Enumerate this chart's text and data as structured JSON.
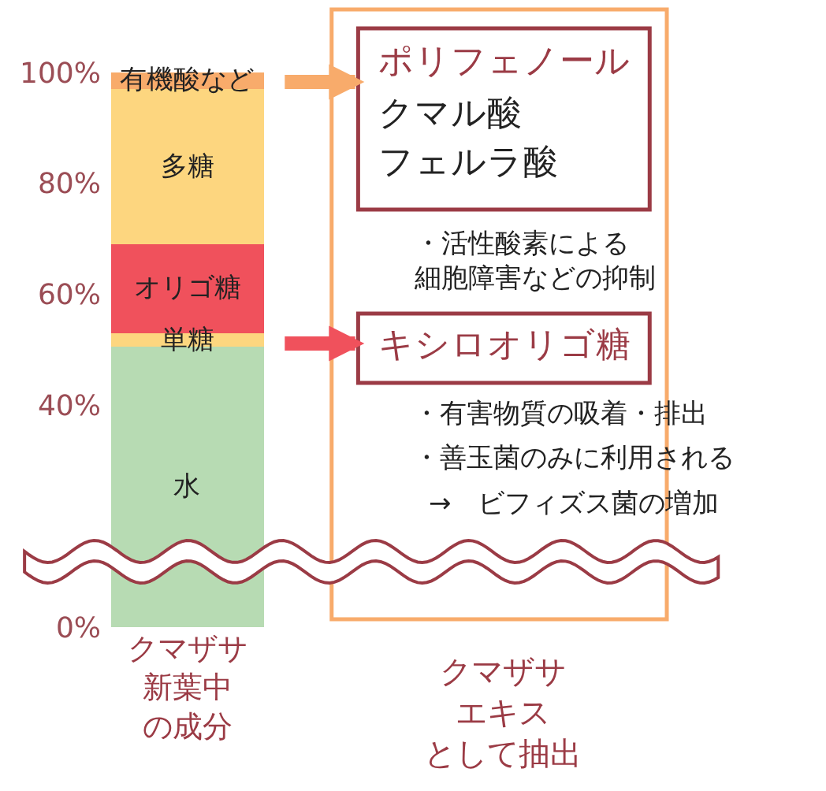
{
  "chart_data": {
    "type": "bar",
    "stacked": true,
    "categories": [
      "クマザサ新葉中の成分"
    ],
    "series": [
      {
        "name": "水",
        "color": "#b7dbb3",
        "values": [
          50.5
        ]
      },
      {
        "name": "単糖",
        "color": "#fdd67f",
        "values": [
          2.5
        ]
      },
      {
        "name": "オリゴ糖",
        "color": "#f0515c",
        "values": [
          16
        ]
      },
      {
        "name": "多糖",
        "color": "#fdd67f",
        "values": [
          28
        ]
      },
      {
        "name": "有機酸など",
        "color": "#f8ab6b",
        "values": [
          3
        ]
      }
    ],
    "ylim": [
      0,
      100
    ],
    "yticks": [
      {
        "value": 0,
        "label": "0%"
      },
      {
        "value": 40,
        "label": "40%"
      },
      {
        "value": 60,
        "label": "60%"
      },
      {
        "value": 80,
        "label": "80%"
      },
      {
        "value": 100,
        "label": "100%"
      }
    ],
    "annotations": [
      "ポリフェノール",
      "クマル酸",
      "フェルラ酸",
      "・活性酸素による細胞障害などの抑制",
      "キシロオリゴ糖",
      "・有害物質の吸着・排出",
      "・善玉菌のみに利用される",
      "→　ビフィズス菌の増加",
      "クマザサエキスとして抽出"
    ]
  }
}
